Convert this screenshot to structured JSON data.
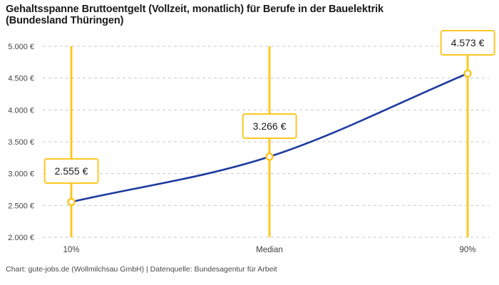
{
  "header": {
    "title_line1": "Gehaltsspanne Bruttoentgelt (Vollzeit, monatlich) für Berufe in der Bauelektrik",
    "title_line2": "(Bundesland Thüringen)"
  },
  "footer": {
    "text": "Chart: gute-jobs.de (Wollmilchsau GmbH) | Datenquelle: Bundesagentur für Arbeit"
  },
  "chart_data": {
    "type": "line",
    "title": "Gehaltsspanne Bruttoentgelt (Vollzeit, monatlich) für Berufe in der Bauelektrik (Bundesland Thüringen)",
    "categories": [
      "10%",
      "Median",
      "90%"
    ],
    "values": [
      2555,
      3266,
      4573
    ],
    "point_labels": [
      "2.555 €",
      "3.266 €",
      "4.573 €"
    ],
    "ylim": [
      2000,
      5000
    ],
    "ytick_step": 500,
    "ytick_labels": [
      "2.000 €",
      "2.500 €",
      "3.000 €",
      "3.500 €",
      "4.000 €",
      "4.500 €",
      "5.000 €"
    ],
    "grid": "horizontal-dashed",
    "legend": "none",
    "line_color": "#1e3a9f",
    "marker_stroke_color": "#fdc723",
    "range_line_color": "#fdc723",
    "gridline_color": "#c9c9c9",
    "axis_text_color": "#444444"
  }
}
